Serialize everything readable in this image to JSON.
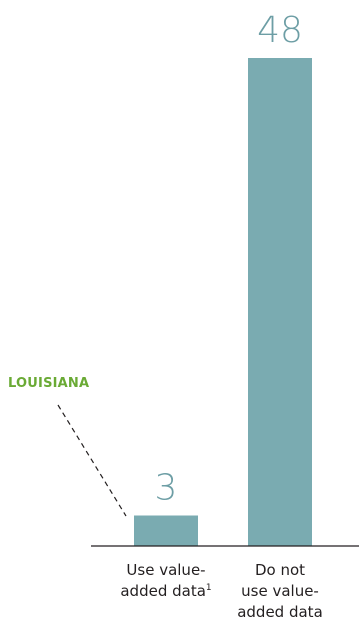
{
  "chart_data": {
    "type": "bar",
    "categories": [
      {
        "lines": [
          "Use value-",
          "added data"
        ],
        "footnote": "1"
      },
      {
        "lines": [
          "Do not",
          "use value-",
          "added data"
        ]
      }
    ],
    "values": [
      3,
      48
    ],
    "value_labels": [
      "3",
      "48"
    ],
    "annotation": "LOUISIANA",
    "annotation_target_index": 0,
    "bar_color": "#7aabb1",
    "value_label_color": "#6d9ea5",
    "annotation_color": "#6aaa35",
    "ylim": [
      0,
      48
    ]
  }
}
